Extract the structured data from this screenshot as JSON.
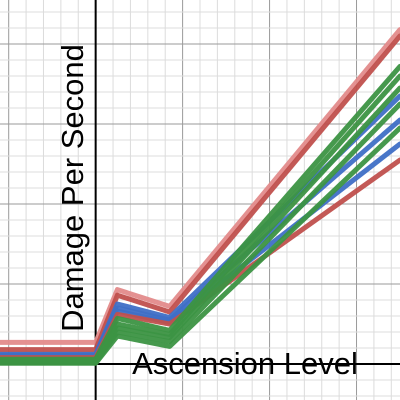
{
  "chart_data": {
    "type": "line",
    "xlabel": "Ascension Level",
    "ylabel": "Damage Per Second",
    "xlim": [
      -1.1,
      3.5
    ],
    "ylim": [
      -0.45,
      4.55
    ],
    "grid": true,
    "tick_labels_shown": false,
    "x_axis_at_y": 0,
    "y_axis_at_x": 0,
    "series": [
      {
        "color": "#e38b8b",
        "x": [
          -1.1,
          0,
          0.25,
          0.85,
          3.5
        ],
        "y": [
          0.27,
          0.27,
          0.93,
          0.72,
          4.18
        ]
      },
      {
        "color": "#c0504d",
        "x": [
          -1.1,
          0,
          0.25,
          0.85,
          3.5
        ],
        "y": [
          0.18,
          0.18,
          0.86,
          0.65,
          4.1
        ]
      },
      {
        "color": "#3f6fc6",
        "x": [
          -1.1,
          0,
          0.25,
          0.85,
          3.5
        ],
        "y": [
          0.12,
          0.12,
          0.75,
          0.58,
          3.35
        ]
      },
      {
        "color": "#3f6fc6",
        "x": [
          -1.1,
          0,
          0.25,
          0.85,
          3.5
        ],
        "y": [
          0.11,
          0.11,
          0.7,
          0.55,
          3.05
        ]
      },
      {
        "color": "#3f6fc6",
        "x": [
          -1.1,
          0,
          0.25,
          0.85,
          3.5
        ],
        "y": [
          0.1,
          0.1,
          0.66,
          0.52,
          2.75
        ]
      },
      {
        "color": "#c0504d",
        "x": [
          -1.1,
          0,
          0.25,
          0.85,
          3.5
        ],
        "y": [
          0.08,
          0.08,
          0.62,
          0.5,
          2.55
        ]
      },
      {
        "color": "#3c9443",
        "x": [
          -1.1,
          0,
          0.25,
          0.85,
          3.5
        ],
        "y": [
          0.06,
          0.06,
          0.57,
          0.42,
          3.72
        ]
      },
      {
        "color": "#3c9443",
        "x": [
          -1.1,
          0,
          0.25,
          0.85,
          3.5
        ],
        "y": [
          0.05,
          0.05,
          0.5,
          0.37,
          3.6
        ]
      },
      {
        "color": "#3c9443",
        "x": [
          -1.1,
          0,
          0.25,
          0.85,
          3.5
        ],
        "y": [
          0.04,
          0.04,
          0.45,
          0.33,
          3.45
        ]
      },
      {
        "color": "#3c9443",
        "x": [
          -1.1,
          0,
          0.25,
          0.85,
          3.5
        ],
        "y": [
          0.02,
          0.02,
          0.4,
          0.28,
          3.25
        ]
      },
      {
        "color": "#3c9443",
        "x": [
          -1.1,
          0,
          0.25,
          0.85,
          3.5
        ],
        "y": [
          0.01,
          0.01,
          0.35,
          0.22,
          2.95
        ]
      }
    ]
  }
}
